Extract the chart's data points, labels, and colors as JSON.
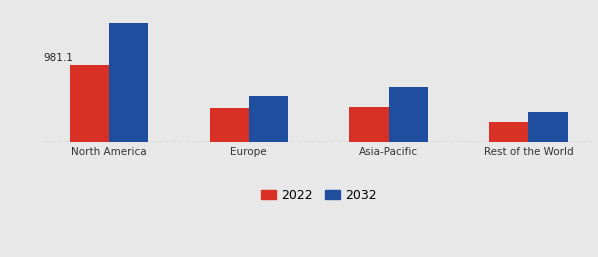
{
  "categories": [
    "North America",
    "Europe",
    "Asia-Pacific",
    "Rest of the World"
  ],
  "values_2022": [
    981.1,
    430,
    445,
    250
  ],
  "values_2032": [
    1520,
    590,
    700,
    390
  ],
  "color_2022": "#d93025",
  "color_2032": "#1f4e9e",
  "annotation_text": "981.1",
  "legend_labels": [
    "2022",
    "2032"
  ],
  "bar_width": 0.28,
  "ylim": [
    0,
    1750
  ],
  "bg_color": "#e8e8e8"
}
